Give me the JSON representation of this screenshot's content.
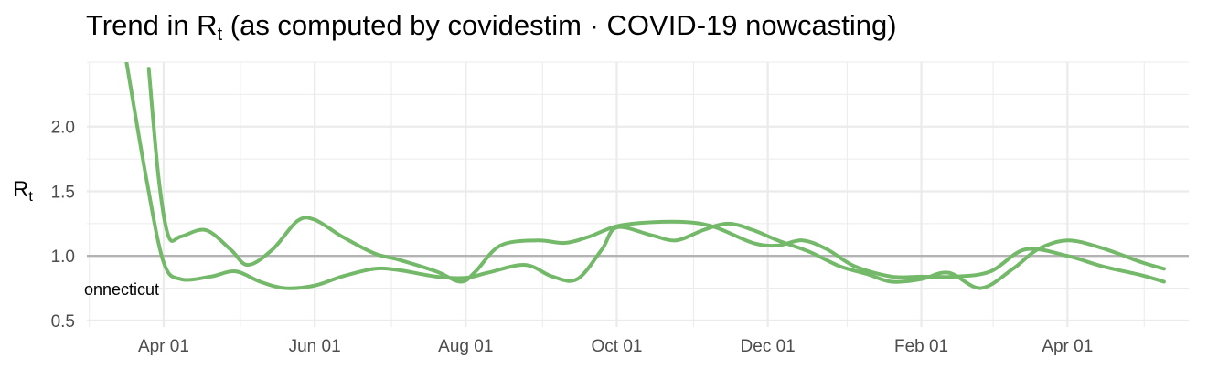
{
  "title": {
    "prefix": "Trend in R",
    "sub": "t",
    "suffix": " (as computed by covidestim · COVID-19 nowcasting)"
  },
  "chart_data": {
    "type": "line",
    "ylabel": {
      "main": "R",
      "sub": "t"
    },
    "xlim": [
      "2020-03-01",
      "2021-05-20"
    ],
    "ylim": [
      0.45,
      2.5
    ],
    "reference_line": 1.0,
    "grid": true,
    "x_ticks": [
      {
        "date": "2020-04-01",
        "label": "Apr 01"
      },
      {
        "date": "2020-06-01",
        "label": "Jun 01"
      },
      {
        "date": "2020-08-01",
        "label": "Aug 01"
      },
      {
        "date": "2020-10-01",
        "label": "Oct 01"
      },
      {
        "date": "2020-12-01",
        "label": "Dec 01"
      },
      {
        "date": "2021-02-01",
        "label": "Feb 01"
      },
      {
        "date": "2021-04-01",
        "label": "Apr 01"
      }
    ],
    "y_ticks": [
      {
        "value": 0.5,
        "label": "0.5"
      },
      {
        "value": 1.0,
        "label": "1.0"
      },
      {
        "value": 1.5,
        "label": "1.5"
      },
      {
        "value": 2.0,
        "label": "2.0"
      }
    ],
    "colors": {
      "series": "#74b96a",
      "refline": "#b3b3b3",
      "grid": "#ebebeb"
    },
    "series_label": "onnecticut",
    "series": [
      {
        "x": [
          "2020-03-17",
          "2020-03-25",
          "2020-04-01",
          "2020-04-08",
          "2020-04-20",
          "2020-04-30",
          "2020-05-10",
          "2020-05-20",
          "2020-06-01",
          "2020-06-12",
          "2020-06-25",
          "2020-07-05",
          "2020-07-20",
          "2020-08-01",
          "2020-08-10",
          "2020-08-25",
          "2020-09-05",
          "2020-09-15",
          "2020-09-25",
          "2020-10-01",
          "2020-10-15",
          "2020-10-25",
          "2020-11-05",
          "2020-11-15",
          "2020-11-25",
          "2020-12-05",
          "2020-12-18",
          "2020-12-30",
          "2021-01-10",
          "2021-01-20",
          "2021-02-01",
          "2021-02-12",
          "2021-02-25",
          "2021-03-10",
          "2021-03-20",
          "2021-04-01",
          "2021-04-15",
          "2021-05-01",
          "2021-05-10"
        ],
        "values": [
          2.5,
          1.6,
          0.95,
          0.82,
          0.84,
          0.88,
          0.8,
          0.75,
          0.77,
          0.84,
          0.9,
          0.89,
          0.84,
          0.83,
          0.87,
          0.93,
          0.84,
          0.82,
          1.05,
          1.22,
          1.16,
          1.12,
          1.2,
          1.25,
          1.2,
          1.12,
          1.03,
          0.92,
          0.86,
          0.8,
          0.82,
          0.87,
          0.75,
          0.9,
          1.05,
          1.12,
          1.06,
          0.95,
          0.9
        ]
      },
      {
        "x": [
          "2020-03-26",
          "2020-03-30",
          "2020-04-03",
          "2020-04-08",
          "2020-04-18",
          "2020-04-28",
          "2020-05-05",
          "2020-05-15",
          "2020-05-25",
          "2020-06-01",
          "2020-06-12",
          "2020-06-25",
          "2020-07-05",
          "2020-07-20",
          "2020-07-30",
          "2020-08-05",
          "2020-08-15",
          "2020-08-30",
          "2020-09-10",
          "2020-09-20",
          "2020-10-01",
          "2020-10-15",
          "2020-10-30",
          "2020-11-10",
          "2020-11-25",
          "2020-12-05",
          "2020-12-15",
          "2020-12-25",
          "2021-01-05",
          "2021-01-20",
          "2021-02-01",
          "2021-02-15",
          "2021-03-01",
          "2021-03-15",
          "2021-04-01",
          "2021-04-15",
          "2021-05-01",
          "2021-05-10"
        ],
        "values": [
          2.45,
          1.6,
          1.15,
          1.15,
          1.2,
          1.05,
          0.93,
          1.05,
          1.27,
          1.28,
          1.15,
          1.02,
          0.97,
          0.88,
          0.8,
          0.88,
          1.08,
          1.12,
          1.1,
          1.15,
          1.23,
          1.26,
          1.26,
          1.22,
          1.1,
          1.08,
          1.12,
          1.05,
          0.92,
          0.84,
          0.84,
          0.84,
          0.88,
          1.05,
          1.0,
          0.92,
          0.85,
          0.8
        ]
      }
    ]
  }
}
